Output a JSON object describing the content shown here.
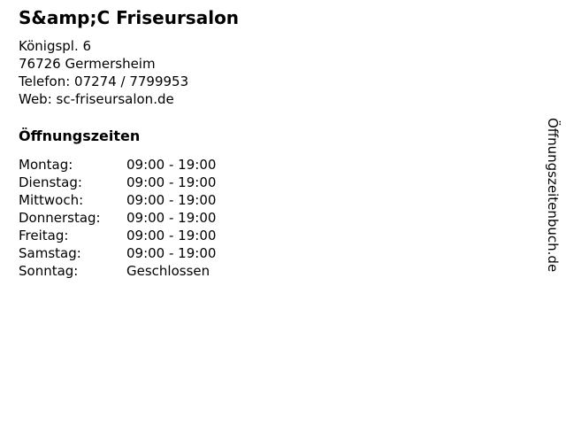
{
  "page": {
    "title": "S&amp;C Friseursalon",
    "address": {
      "street": "Königspl. 6",
      "city": "76726 Germersheim",
      "phone": "Telefon: 07274 / 7799953",
      "web": "Web: sc-friseursalon.de"
    }
  },
  "hours": {
    "heading": "Öffnungszeiten",
    "rows": [
      {
        "day": "Montag:",
        "time": "09:00 - 19:00"
      },
      {
        "day": "Dienstag:",
        "time": "09:00 - 19:00"
      },
      {
        "day": "Mittwoch:",
        "time": "09:00 - 19:00"
      },
      {
        "day": "Donnerstag:",
        "time": "09:00 - 19:00"
      },
      {
        "day": "Freitag:",
        "time": "09:00 - 19:00"
      },
      {
        "day": "Samstag:",
        "time": "09:00 - 19:00"
      },
      {
        "day": "Sonntag:",
        "time": "Geschlossen"
      }
    ]
  },
  "watermark": {
    "label": "Öffnungszeitenbuch.de"
  },
  "colors": {
    "text": "#000000",
    "background": "#ffffff"
  }
}
